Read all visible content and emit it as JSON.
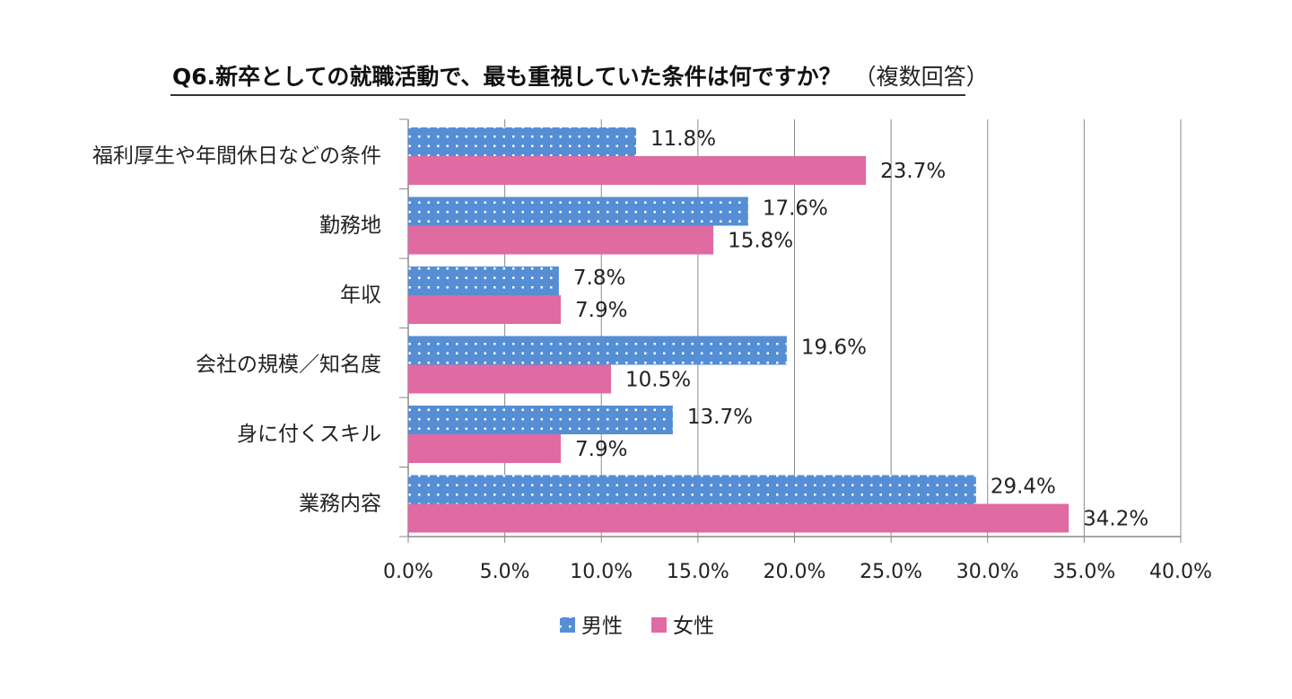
{
  "chart_data": {
    "type": "bar",
    "orientation": "horizontal",
    "title": "Q6.新卒としての就職活動で、最も重視していた条件は何ですか？",
    "subtitle": "（複数回答）",
    "categories": [
      "福利厚生や年間休日などの条件",
      "勤務地",
      "年収",
      "会社の規模／知名度",
      "身に付くスキル",
      "業務内容"
    ],
    "series": [
      {
        "name": "男性",
        "color": "#558ed5",
        "pattern": "dots",
        "values": [
          11.8,
          17.6,
          7.8,
          19.6,
          13.7,
          29.4
        ]
      },
      {
        "name": "女性",
        "color": "#e06aa2",
        "pattern": "solid",
        "values": [
          23.7,
          15.8,
          7.9,
          10.5,
          7.9,
          34.2
        ]
      }
    ],
    "xlim": [
      0,
      40
    ],
    "xticks": [
      "0.0%",
      "5.0%",
      "10.0%",
      "15.0%",
      "20.0%",
      "25.0%",
      "30.0%",
      "35.0%",
      "40.0%"
    ],
    "grid": true,
    "legend": "bottom"
  }
}
